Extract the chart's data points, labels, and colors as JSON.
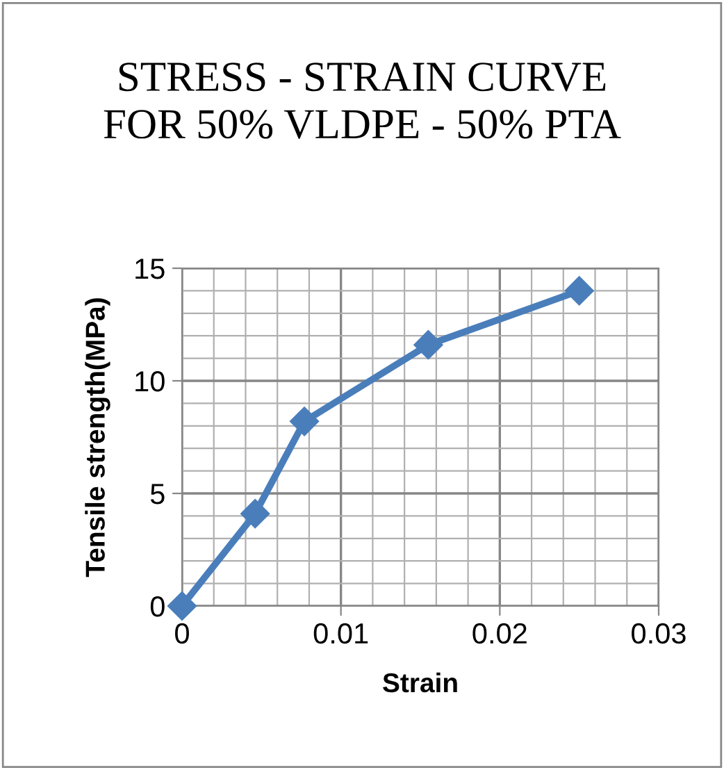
{
  "chart_data": {
    "type": "line",
    "title": "STRESS - STRAIN CURVE\nFOR 50% VLDPE - 50% PTA",
    "xlabel": "Strain",
    "ylabel": "Tensile strength(MPa)",
    "x": [
      0,
      0.0046,
      0.0077,
      0.0155,
      0.025
    ],
    "series": [
      {
        "color": "#4a7ebb",
        "values": [
          0,
          4.1,
          8.2,
          11.6,
          14.0
        ]
      }
    ],
    "xlim": [
      0,
      0.03
    ],
    "xticks": [
      0,
      0.01,
      0.02,
      0.03
    ],
    "ylim": [
      0,
      15
    ],
    "yticks": [
      0,
      5,
      10,
      15
    ],
    "grid": true,
    "marker": "diamond",
    "line_style": "solid"
  }
}
